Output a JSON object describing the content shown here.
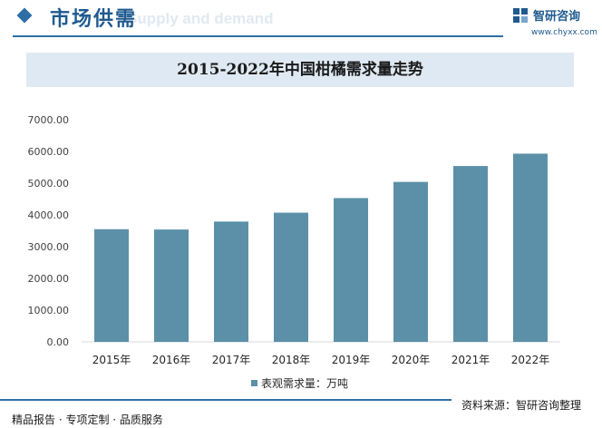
{
  "header": {
    "section_title": "市场供需",
    "section_subtitle": "Supply and demand",
    "brand_name": "智研咨询",
    "brand_url": "www.chyxx.com"
  },
  "chart_data": {
    "type": "bar",
    "title": "2015-2022年中国柑橘需求量走势",
    "categories": [
      "2015年",
      "2016年",
      "2017年",
      "2018年",
      "2019年",
      "2020年",
      "2021年",
      "2022年"
    ],
    "series": [
      {
        "name": "表观需求量：万吨",
        "values": [
          3550,
          3540,
          3790,
          4070,
          4530,
          5040,
          5540,
          5930
        ],
        "color": "#5b90a8"
      }
    ],
    "y_ticks": [
      "0.00",
      "1000.00",
      "2000.00",
      "3000.00",
      "4000.00",
      "5000.00",
      "6000.00",
      "7000.00"
    ],
    "ylim": [
      0,
      7000
    ],
    "grid": false,
    "legend_position": "bottom"
  },
  "footer": {
    "source": "资料来源：智研咨询整理",
    "services": "精品报告 · 专项定制 · 品质服务"
  }
}
